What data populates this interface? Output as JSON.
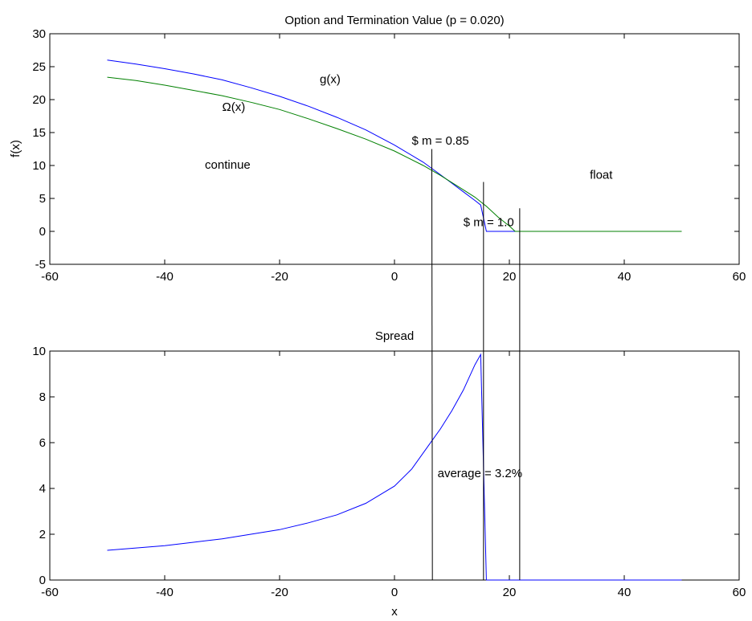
{
  "chart_data": [
    {
      "id": "top",
      "type": "line",
      "title": "Option and Termination Value (p = 0.020)",
      "xlabel": "",
      "ylabel": "f(x)",
      "xlim": [
        -60,
        60
      ],
      "ylim": [
        -5,
        30
      ],
      "xticks": [
        -60,
        -40,
        -20,
        0,
        20,
        40,
        60
      ],
      "yticks": [
        -5,
        0,
        5,
        10,
        15,
        20,
        25,
        30
      ],
      "grid": false,
      "series": [
        {
          "name": "g(x)",
          "color": "#0000ff",
          "x": [
            -50,
            -45,
            -40,
            -35,
            -30,
            -25,
            -20,
            -15,
            -10,
            -5,
            0,
            5,
            8,
            10,
            12,
            14,
            15,
            16,
            20,
            30,
            40,
            50
          ],
          "y": [
            26.0,
            25.4,
            24.7,
            23.9,
            23.0,
            21.8,
            20.5,
            19.0,
            17.3,
            15.4,
            13.1,
            10.5,
            8.6,
            7.3,
            6.0,
            4.7,
            4.0,
            0,
            0,
            0,
            0,
            0
          ]
        },
        {
          "name": "Ω(x)",
          "color": "#008000",
          "x": [
            -50,
            -45,
            -40,
            -35,
            -30,
            -25,
            -20,
            -15,
            -10,
            -5,
            0,
            5,
            8,
            10,
            12,
            14,
            16,
            18,
            20,
            21,
            30,
            40,
            50
          ],
          "y": [
            23.4,
            22.9,
            22.2,
            21.4,
            20.6,
            19.6,
            18.5,
            17.1,
            15.6,
            14.0,
            12.2,
            10.0,
            8.5,
            7.4,
            6.3,
            5.2,
            3.8,
            2.2,
            0.8,
            0,
            0,
            0,
            0
          ]
        }
      ],
      "annotations": [
        {
          "text": "g(x)",
          "x": -13,
          "y": 22.5
        },
        {
          "text": "Ω(x)",
          "x": -30,
          "y": 18.3
        },
        {
          "text": "$ m = 0.85",
          "x": 3,
          "y": 13.2
        },
        {
          "text": "continue",
          "x": -33,
          "y": 9.5
        },
        {
          "text": "float",
          "x": 34,
          "y": 8.0
        },
        {
          "text": "$ m = 1.0",
          "x": 12,
          "y": 0.8
        }
      ]
    },
    {
      "id": "bottom",
      "type": "line",
      "title": "Spread",
      "xlabel": "x",
      "ylabel": "",
      "xlim": [
        -60,
        60
      ],
      "ylim": [
        0,
        10
      ],
      "xticks": [
        -60,
        -40,
        -20,
        0,
        20,
        40,
        60
      ],
      "yticks": [
        0,
        2,
        4,
        6,
        8,
        10
      ],
      "grid": false,
      "series": [
        {
          "name": "",
          "color": "#0000ff",
          "x": [
            -50,
            -45,
            -40,
            -35,
            -30,
            -25,
            -20,
            -15,
            -10,
            -5,
            0,
            3,
            6,
            8,
            10,
            12,
            14,
            15,
            16,
            20,
            30,
            40,
            50
          ],
          "y": [
            1.3,
            1.4,
            1.5,
            1.65,
            1.8,
            2.0,
            2.2,
            2.5,
            2.85,
            3.35,
            4.1,
            4.85,
            5.9,
            6.6,
            7.4,
            8.3,
            9.4,
            9.85,
            0,
            0,
            0,
            0,
            0
          ]
        }
      ],
      "annotations": [
        {
          "text": "average = 3.2%",
          "x": 7.5,
          "y": 4.5
        }
      ]
    }
  ],
  "divider_lines_x": [
    6.5,
    15.5,
    21.8
  ]
}
